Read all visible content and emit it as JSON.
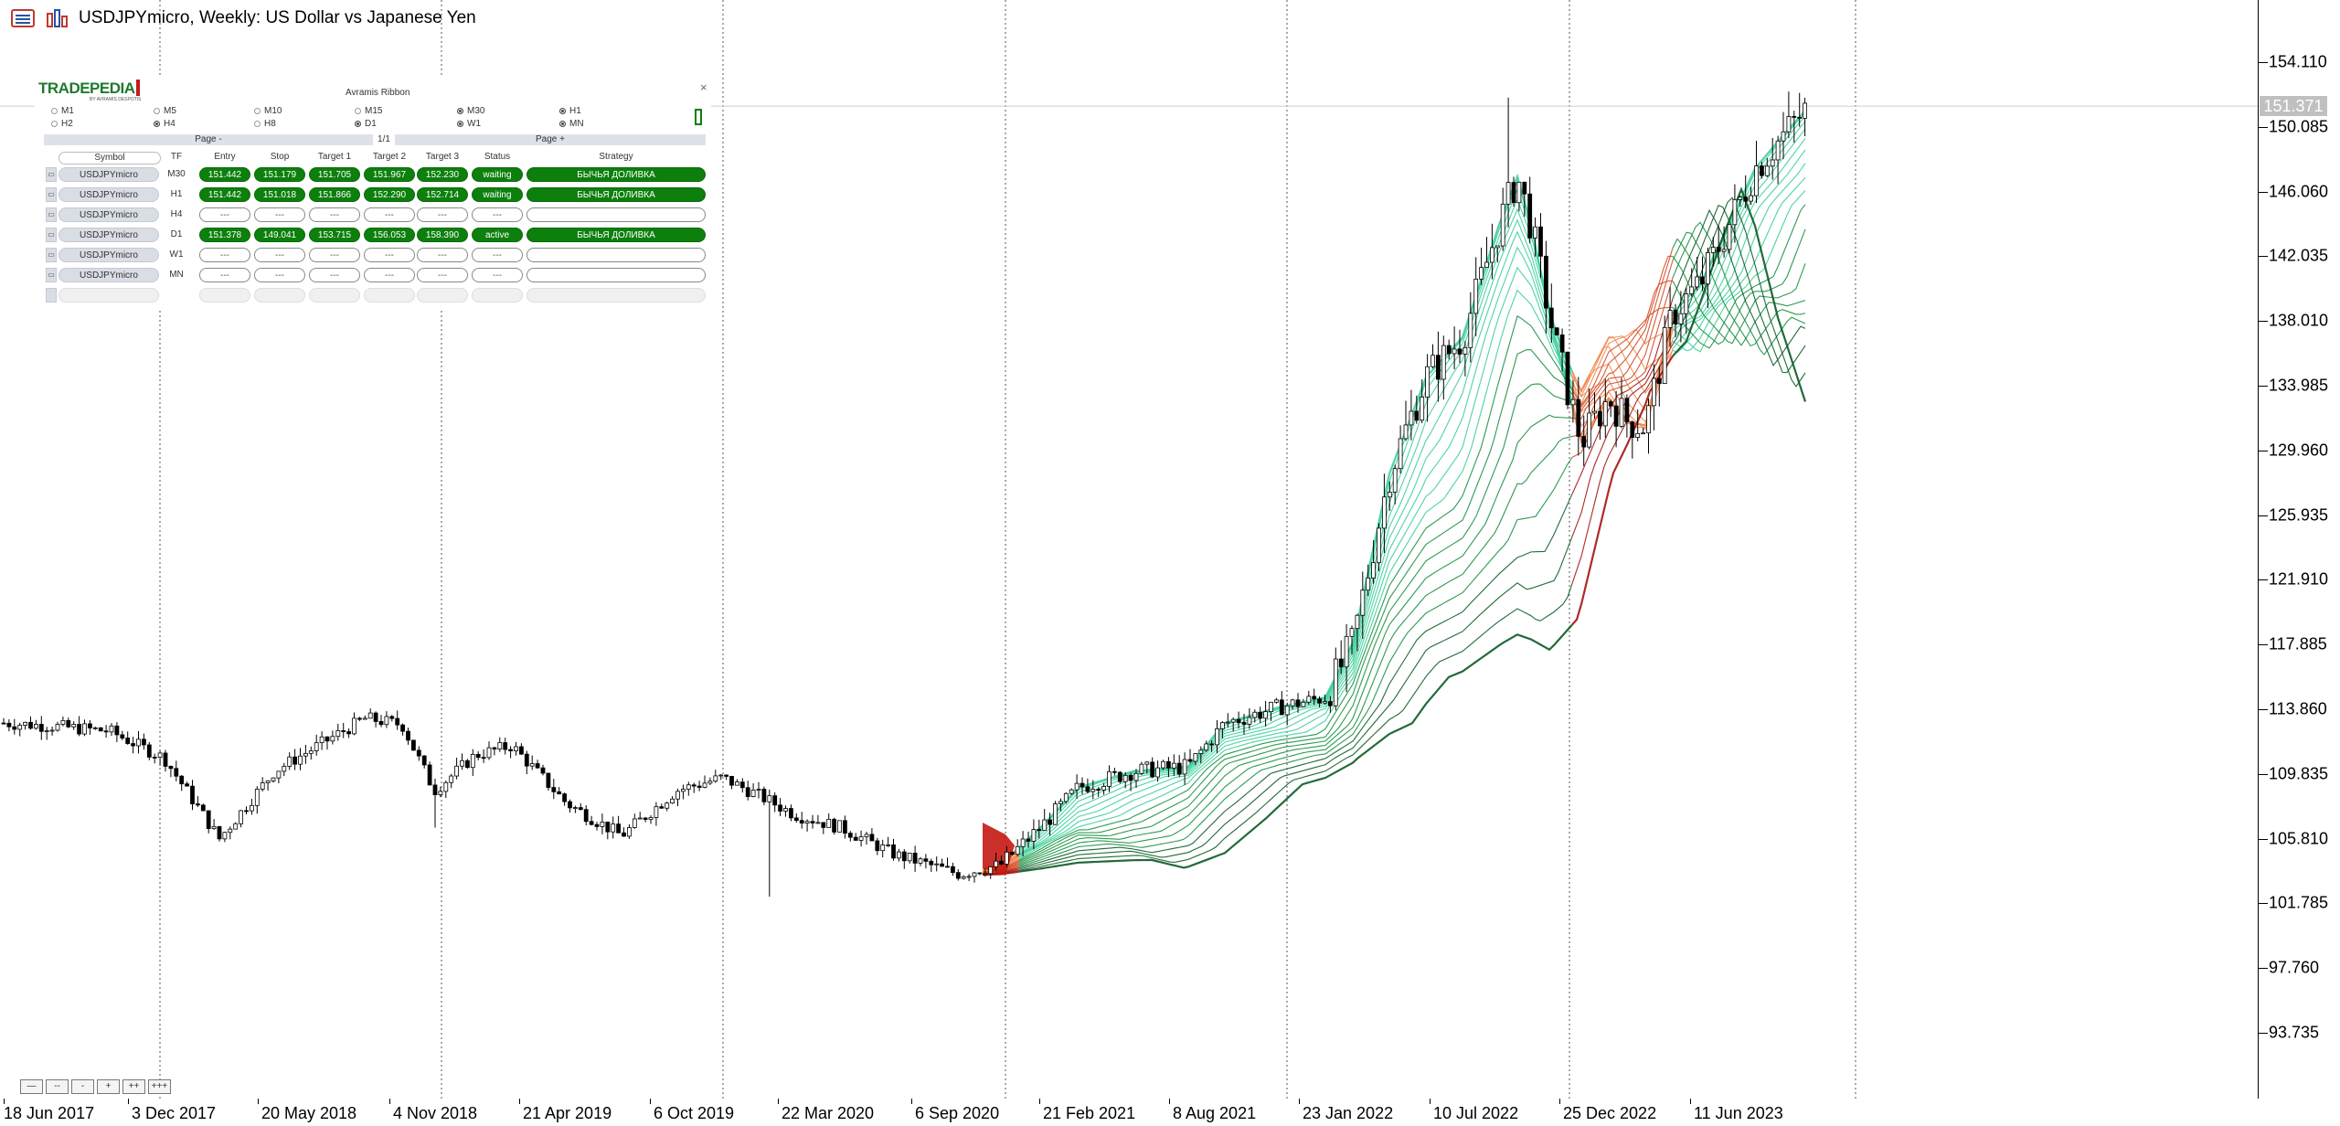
{
  "window": {
    "title": "USDJPYmicro, Weekly:  US Dollar vs Japanese Yen"
  },
  "chart": {
    "symbol": "USDJPYmicro",
    "timeframe": "Weekly",
    "current_price": "151.371",
    "price_axis_labels": [
      "154.110",
      "150.085",
      "146.060",
      "142.035",
      "138.010",
      "133.985",
      "129.960",
      "125.935",
      "121.910",
      "117.885",
      "113.860",
      "109.835",
      "105.810",
      "101.785",
      "97.760",
      "93.735"
    ],
    "time_axis_labels": [
      "18 Jun 2017",
      "3 Dec 2017",
      "20 May 2018",
      "4 Nov 2018",
      "21 Apr 2019",
      "6 Oct 2019",
      "22 Mar 2020",
      "6 Sep 2020",
      "21 Feb 2021",
      "8 Aug 2021",
      "23 Jan 2022",
      "10 Jul 2022",
      "25 Dec 2022",
      "11 Jun 2023"
    ],
    "zoom_buttons": [
      "—",
      "--",
      "-",
      "+",
      "++",
      "+++"
    ],
    "colors": {
      "bull_ribbon": "#2fbf8c",
      "bull_ribbon_dark": "#0c5a24",
      "bear_ribbon": "#e8673a",
      "bear_ribbon_dark": "#b51a0f"
    }
  },
  "panel": {
    "logo": "TRADEPEDIA",
    "logo_sub": "BY AVRAMIS DESPOTIS",
    "title": "Avramis Ribbon",
    "close": "×",
    "timeframes_row1": [
      {
        "label": "M1",
        "checked": false
      },
      {
        "label": "M5",
        "checked": false
      },
      {
        "label": "M10",
        "checked": false
      },
      {
        "label": "M15",
        "checked": false
      },
      {
        "label": "M30",
        "checked": true
      },
      {
        "label": "H1",
        "checked": true
      }
    ],
    "timeframes_row2": [
      {
        "label": "H2",
        "checked": false
      },
      {
        "label": "H4",
        "checked": true
      },
      {
        "label": "H8",
        "checked": false
      },
      {
        "label": "D1",
        "checked": true
      },
      {
        "label": "W1",
        "checked": true
      },
      {
        "label": "MN",
        "checked": true
      }
    ],
    "pager": {
      "prev": "Page -",
      "current": "1/1",
      "next": "Page +"
    },
    "headers": [
      "Symbol",
      "TF",
      "Entry",
      "Stop",
      "Target 1",
      "Target 2",
      "Target 3",
      "Status",
      "Strategy"
    ],
    "rows": [
      {
        "symbol": "USDJPYmicro",
        "tf": "M30",
        "entry": "151.442",
        "stop": "151.179",
        "t1": "151.705",
        "t2": "151.967",
        "t3": "152.230",
        "status": "waiting",
        "strategy": "БЫЧЬЯ ДОЛИВКА",
        "filled": true
      },
      {
        "symbol": "USDJPYmicro",
        "tf": "H1",
        "entry": "151.442",
        "stop": "151.018",
        "t1": "151.866",
        "t2": "152.290",
        "t3": "152.714",
        "status": "waiting",
        "strategy": "БЫЧЬЯ ДОЛИВКА",
        "filled": true
      },
      {
        "symbol": "USDJPYmicro",
        "tf": "H4",
        "entry": "---",
        "stop": "---",
        "t1": "---",
        "t2": "---",
        "t3": "---",
        "status": "---",
        "strategy": "",
        "filled": false
      },
      {
        "symbol": "USDJPYmicro",
        "tf": "D1",
        "entry": "151.378",
        "stop": "149.041",
        "t1": "153.715",
        "t2": "156.053",
        "t3": "158.390",
        "status": "active",
        "strategy": "БЫЧЬЯ ДОЛИВКА",
        "filled": true
      },
      {
        "symbol": "USDJPYmicro",
        "tf": "W1",
        "entry": "---",
        "stop": "---",
        "t1": "---",
        "t2": "---",
        "t3": "---",
        "status": "---",
        "strategy": "",
        "filled": false
      },
      {
        "symbol": "USDJPYmicro",
        "tf": "MN",
        "entry": "---",
        "stop": "---",
        "t1": "---",
        "t2": "---",
        "t3": "---",
        "status": "---",
        "strategy": "",
        "filled": false
      }
    ]
  }
}
